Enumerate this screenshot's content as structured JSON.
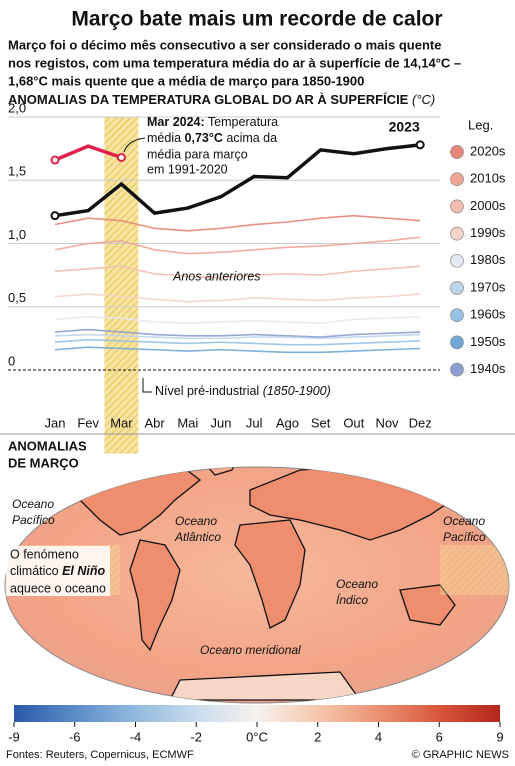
{
  "title": "Março bate mais um recorde de calor",
  "subtitle_lines": [
    "Março foi o décimo mês consecutivo a ser considerado o mais quente",
    "nos registos, com uma temperatura média do ar à superfície de 14,14°C –",
    "1,68°C mais quente que a média de março para 1850-1900"
  ],
  "chart_data": [
    {
      "type": "line",
      "title": "ANOMALIAS DA TEMPERATURA GLOBAL DO AR À SUPERFÍCIE",
      "unit": "(°C)",
      "categories": [
        "Jan",
        "Fev",
        "Mar",
        "Abr",
        "Mai",
        "Jun",
        "Jul",
        "Ago",
        "Set",
        "Out",
        "Nov",
        "Dez"
      ],
      "ylim": [
        -0.25,
        2.0
      ],
      "yticks": [
        {
          "value": 2.0,
          "label": "2,0"
        },
        {
          "value": 1.5,
          "label": "1,5"
        },
        {
          "value": 1.0,
          "label": "1,0"
        },
        {
          "value": 0.5,
          "label": "0,5"
        },
        0
      ],
      "grid": true,
      "highlight_index": 2,
      "legend_title": "Leg.",
      "legend_position": "right",
      "series": [
        {
          "name": "2020s",
          "color": "#e8857a",
          "values": [
            1.15,
            1.2,
            1.18,
            1.12,
            1.1,
            1.12,
            1.15,
            1.17,
            1.2,
            1.22,
            1.2,
            1.18
          ]
        },
        {
          "name": "2010s",
          "color": "#f0a595",
          "values": [
            0.95,
            1.0,
            1.02,
            0.95,
            0.92,
            0.93,
            0.95,
            0.97,
            0.98,
            1.0,
            1.02,
            1.05
          ]
        },
        {
          "name": "2000s",
          "color": "#f4bcad",
          "values": [
            0.78,
            0.8,
            0.82,
            0.76,
            0.74,
            0.73,
            0.75,
            0.76,
            0.75,
            0.78,
            0.8,
            0.82
          ]
        },
        {
          "name": "1990s",
          "color": "#f5d3c9",
          "values": [
            0.58,
            0.6,
            0.58,
            0.56,
            0.54,
            0.55,
            0.57,
            0.56,
            0.55,
            0.57,
            0.58,
            0.6
          ]
        },
        {
          "name": "1980s",
          "color": "#e3e9f2",
          "values": [
            0.4,
            0.42,
            0.41,
            0.38,
            0.37,
            0.38,
            0.39,
            0.38,
            0.37,
            0.4,
            0.41,
            0.42
          ]
        },
        {
          "name": "1970s",
          "color": "#bcd5ec",
          "values": [
            0.27,
            0.28,
            0.27,
            0.26,
            0.25,
            0.25,
            0.26,
            0.26,
            0.25,
            0.26,
            0.27,
            0.28
          ]
        },
        {
          "name": "1960s",
          "color": "#97c1e4",
          "values": [
            0.22,
            0.24,
            0.23,
            0.22,
            0.21,
            0.22,
            0.21,
            0.2,
            0.2,
            0.21,
            0.22,
            0.23
          ]
        },
        {
          "name": "1950s",
          "color": "#6fa9d8",
          "values": [
            0.16,
            0.18,
            0.17,
            0.16,
            0.15,
            0.16,
            0.15,
            0.14,
            0.14,
            0.15,
            0.16,
            0.17
          ]
        },
        {
          "name": "1940s",
          "color": "#8c9ed2",
          "values": [
            0.3,
            0.32,
            0.3,
            0.28,
            0.27,
            0.27,
            0.28,
            0.27,
            0.26,
            0.28,
            0.29,
            0.3
          ]
        },
        {
          "name": "2023",
          "color": "#111111",
          "values": [
            1.22,
            1.26,
            1.47,
            1.24,
            1.28,
            1.37,
            1.53,
            1.52,
            1.74,
            1.71,
            1.75,
            1.78
          ]
        },
        {
          "color": "#e0204a",
          "values": [
            1.66,
            1.77,
            1.68,
            null,
            null,
            null,
            null,
            null,
            null,
            null,
            null,
            null
          ]
        }
      ],
      "annotations": {
        "mar": [
          "Mar 2024:",
          " Temperatura",
          "média ",
          "0,73°C",
          " acima da",
          "média para março",
          "em 1991-2020"
        ],
        "previous": "Anos anteriores",
        "baseline": [
          "Nível pré-industrial ",
          "(1850-1900)"
        ]
      }
    },
    {
      "type": "map",
      "title_lines": [
        "ANOMALIAS",
        "DE MARÇO"
      ],
      "labels": [
        [
          "Oceano",
          "Pacífico"
        ],
        [
          "Oceano",
          "Atlântico"
        ],
        [
          "Oceano",
          "Pacífico"
        ],
        [
          "Oceano",
          "Índico"
        ],
        [
          "Oceano meridional"
        ]
      ],
      "el_nino": [
        "O fenómeno",
        "climático ",
        "El Niño",
        "aquece o oceano"
      ],
      "colorbar": {
        "ticks": [
          -9,
          -6,
          -4,
          -2,
          {
            "value": 0,
            "label": "0°C"
          },
          2,
          4,
          6,
          9
        ],
        "colors": [
          "#2a5aa8",
          "#5b8cc8",
          "#93b9de",
          "#c9dcee",
          "#f6f2ee",
          "#f6c7ae",
          "#ec9273",
          "#d9563b",
          "#b3261c"
        ]
      }
    }
  ],
  "footer": {
    "source": "Fontes: Reuters, Copernicus, ECMWF",
    "credit": "© GRAPHIC NEWS"
  }
}
